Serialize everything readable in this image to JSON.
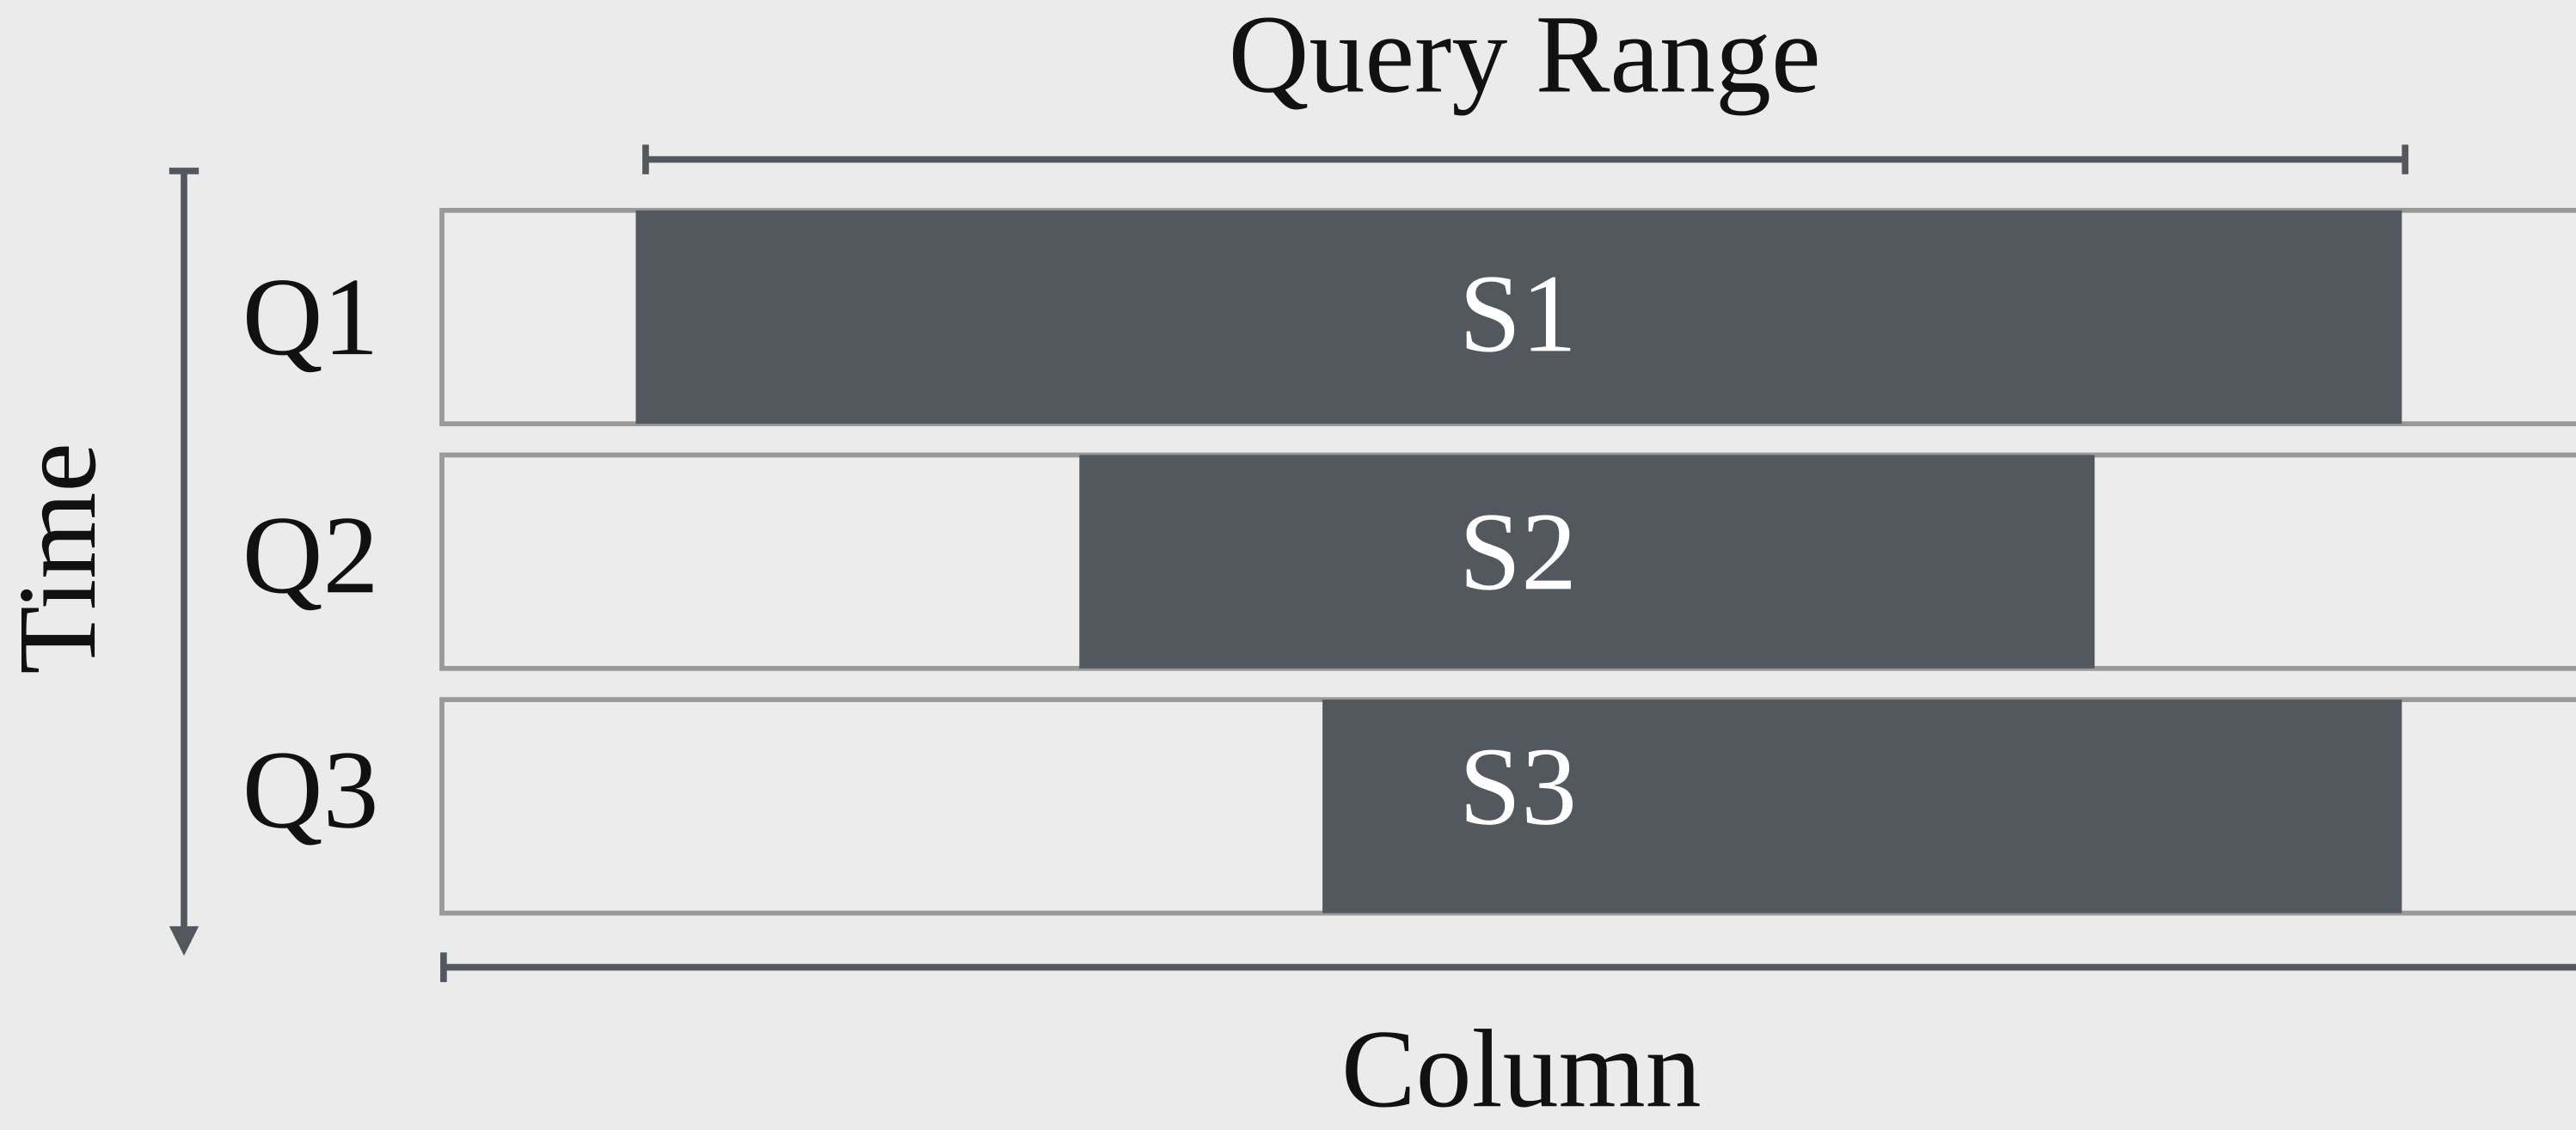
{
  "title": "Query Range",
  "y_axis_label": "Time",
  "x_axis_label": "Column",
  "rows": [
    {
      "label": "Q1",
      "segment": "S1"
    },
    {
      "label": "Q2",
      "segment": "S2"
    },
    {
      "label": "Q3",
      "segment": "S3"
    }
  ]
}
